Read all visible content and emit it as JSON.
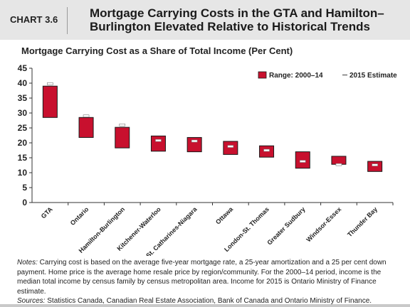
{
  "header": {
    "chart_number": "CHART 3.6",
    "title": "Mortgage Carrying Costs in the GTA and Hamilton–Burlington Elevated Relative to Historical Trends"
  },
  "colors": {
    "range_fill": "#c8102e",
    "estimate_marker": "#ffffff",
    "header_bg": "#e6e6e6"
  },
  "chart_data": {
    "type": "bar",
    "title": "Mortgage Carrying Cost as a Share of Total Income (Per Cent)",
    "xlabel": "",
    "ylabel": "",
    "ylim": [
      0,
      45
    ],
    "yticks": [
      0,
      5,
      10,
      15,
      20,
      25,
      30,
      35,
      40,
      45
    ],
    "grid": false,
    "legend_position": "top-right",
    "categories": [
      "GTA",
      "Ontario",
      "Hamilton-Burlington",
      "Kitchener-Waterloo",
      "St. Catharines-Niagara",
      "Ottawa",
      "London-St. Thomas",
      "Greater Sudbury",
      "Windsor-Essex",
      "Thunder Bay"
    ],
    "series": [
      {
        "name": "Range: 2000–14",
        "kind": "floating-range",
        "low": [
          28.5,
          21.8,
          18.3,
          17.2,
          17.0,
          16.1,
          15.2,
          11.5,
          12.8,
          10.4
        ],
        "high": [
          39.0,
          28.5,
          25.2,
          22.3,
          21.8,
          20.5,
          19.0,
          17.0,
          15.5,
          13.8
        ]
      },
      {
        "name": "2015 Estimate",
        "kind": "marker",
        "values": [
          39.8,
          29.0,
          26.0,
          20.8,
          20.6,
          18.8,
          17.5,
          13.8,
          12.7,
          12.6
        ]
      }
    ]
  },
  "notes": {
    "notes_label": "Notes:",
    "notes_text": " Carrying cost is based on the average five-year mortgage rate, a 25-year amortization and a 25 per cent down payment. Home price is the average home resale price by region/community. For the 2000–14 period, income is the median total income by census family by census metropolitan area. Income for 2015 is Ontario Ministry of Finance estimate.",
    "sources_label": "Sources:",
    "sources_text": " Statistics Canada, Canadian Real Estate Association, Bank of Canada and Ontario Ministry of Finance."
  }
}
